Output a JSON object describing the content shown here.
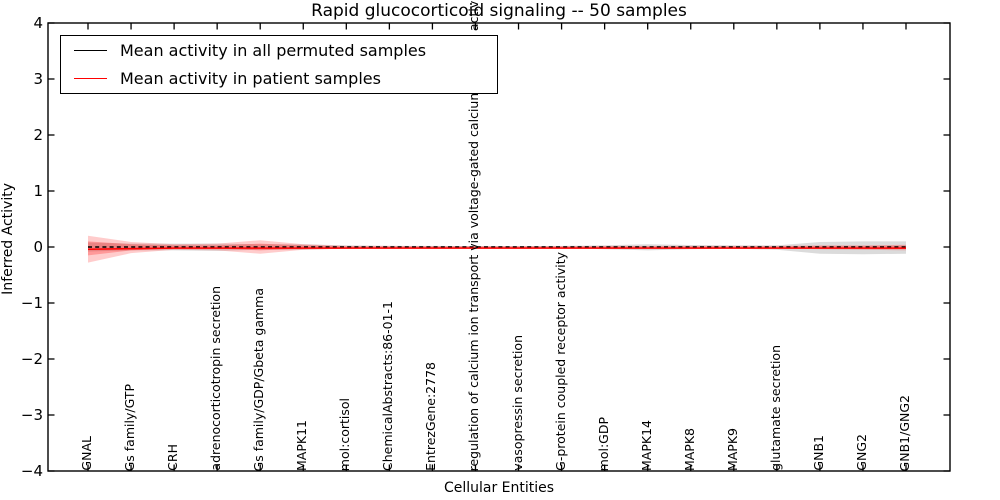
{
  "chart_data": {
    "type": "line",
    "title": "Rapid glucocorticoid signaling -- 50 samples",
    "xlabel": "Cellular Entities",
    "ylabel": "Inferred Activity",
    "ylim": [
      -4,
      4
    ],
    "yticks": [
      "4",
      "3",
      "2",
      "1",
      "0",
      "−1",
      "−2",
      "−3",
      "−4"
    ],
    "ytick_values": [
      4,
      3,
      2,
      1,
      0,
      -1,
      -2,
      -3,
      -4
    ],
    "grid": "off",
    "legend_position": "upper left",
    "categories": [
      "GNAL",
      "Gs family/GTP",
      "CRH",
      "adrenocorticotropin secretion",
      "Gs family/GDP/Gbeta gamma",
      "MAPK11",
      "mol:cortisol",
      "ChemicalAbstracts:86-01-1",
      "EntrezGene:2778",
      "regulation of calcium ion transport via voltage-gated calcium channel activity",
      "vasopressin secretion",
      "G-protein coupled receptor activity",
      "mol:GDP",
      "MAPK14",
      "MAPK8",
      "MAPK9",
      "glutamate secretion",
      "GNB1",
      "GNG2",
      "GNB1/GNG2"
    ],
    "series": [
      {
        "name": "Mean activity in all permuted samples",
        "color": "#000000",
        "style": "dashed",
        "values": [
          0,
          0,
          0,
          0,
          0,
          0,
          0,
          0,
          0,
          0,
          0,
          0,
          0,
          0,
          0,
          0,
          0,
          0,
          0,
          0
        ]
      },
      {
        "name": "Mean activity in patient samples",
        "color": "#ff0000",
        "style": "solid",
        "values": [
          -0.04,
          -0.03,
          -0.02,
          -0.02,
          -0.02,
          -0.02,
          -0.02,
          -0.02,
          -0.02,
          -0.02,
          -0.02,
          -0.02,
          -0.02,
          -0.02,
          -0.02,
          -0.02,
          -0.02,
          -0.02,
          -0.02,
          -0.02
        ]
      }
    ],
    "bands": [
      {
        "name": "permuted-std-band",
        "color": "rgba(125,125,125,0.28)",
        "upper": [
          0.08,
          0.06,
          0.06,
          0.06,
          0.05,
          0.05,
          0.03,
          0.02,
          0.02,
          0.015,
          0.015,
          0.02,
          0.03,
          0.05,
          0.035,
          0.03,
          0.03,
          0.09,
          0.1,
          0.1
        ],
        "lower": [
          -0.08,
          -0.06,
          -0.06,
          -0.07,
          -0.05,
          -0.05,
          -0.03,
          -0.02,
          -0.02,
          -0.015,
          -0.015,
          -0.02,
          -0.04,
          -0.06,
          -0.04,
          -0.03,
          -0.05,
          -0.12,
          -0.13,
          -0.12
        ]
      },
      {
        "name": "patient-std-band-outer",
        "color": "rgba(255,0,0,0.20)",
        "upper": [
          0.2,
          0.09,
          0.05,
          0.06,
          0.12,
          0.05,
          0.02,
          0.02,
          0.015,
          0.015,
          0.015,
          0.015,
          0.02,
          0.02,
          0.02,
          0.02,
          0.02,
          0.03,
          0.03,
          0.04
        ],
        "lower": [
          -0.28,
          -0.11,
          -0.05,
          -0.06,
          -0.12,
          -0.05,
          -0.03,
          -0.02,
          -0.015,
          -0.015,
          -0.015,
          -0.015,
          -0.02,
          -0.02,
          -0.02,
          -0.02,
          -0.02,
          -0.04,
          -0.05,
          -0.06
        ]
      },
      {
        "name": "patient-std-band-inner",
        "color": "rgba(255,0,0,0.25)",
        "upper": [
          0.1,
          0.05,
          0.03,
          0.03,
          0.06,
          0.03,
          0.012,
          0.01,
          0.01,
          0.01,
          0.01,
          0.01,
          0.012,
          0.012,
          0.012,
          0.012,
          0.012,
          0.02,
          0.02,
          0.025
        ],
        "lower": [
          -0.15,
          -0.06,
          -0.03,
          -0.03,
          -0.06,
          -0.03,
          -0.015,
          -0.01,
          -0.01,
          -0.01,
          -0.01,
          -0.01,
          -0.012,
          -0.012,
          -0.012,
          -0.012,
          -0.012,
          -0.025,
          -0.03,
          -0.035
        ]
      }
    ]
  },
  "legend": {
    "entries": [
      {
        "label": "Mean activity in all permuted samples",
        "color": "#000000"
      },
      {
        "label": "Mean activity in patient samples",
        "color": "#ff0000"
      }
    ]
  },
  "colors": {
    "axis": "#000000",
    "background": "#ffffff",
    "permuted_line": "#000000",
    "patient_line": "#ff0000"
  }
}
